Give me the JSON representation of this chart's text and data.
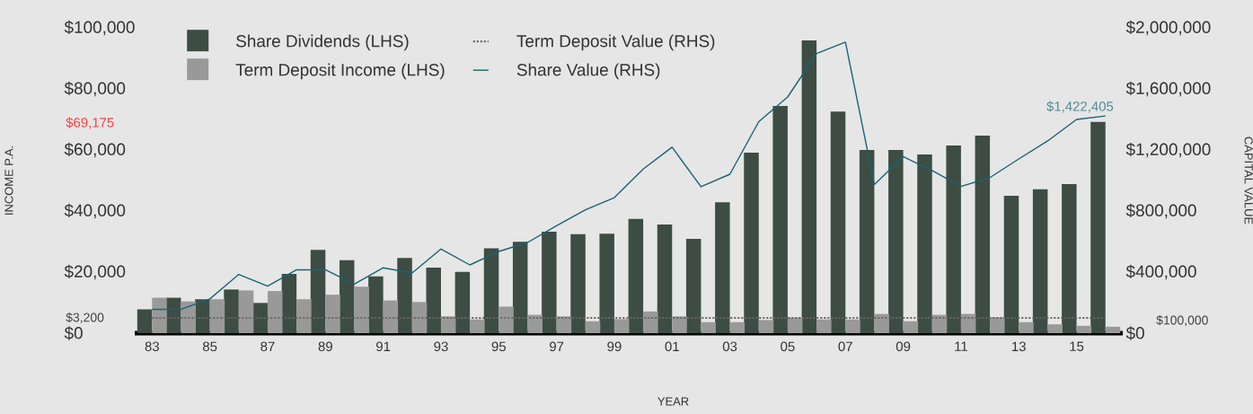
{
  "chart_data": {
    "type": "bar",
    "xlabel": "YEAR",
    "ylabel": "INCOME P.A.",
    "y2label": "CAPITAL VALUE",
    "categories": [
      "83",
      null,
      "85",
      null,
      "87",
      null,
      "89",
      null,
      "91",
      null,
      "93",
      null,
      "95",
      null,
      "97",
      null,
      "99",
      null,
      "01",
      null,
      "03",
      null,
      "05",
      null,
      "07",
      null,
      "09",
      null,
      "11",
      null,
      "13",
      null,
      "15",
      null
    ],
    "series": [
      {
        "name": "Share Dividends (LHS)",
        "color": "#3d4d43",
        "values": [
          7800,
          11600,
          11100,
          14300,
          9900,
          19400,
          27300,
          23900,
          18600,
          24600,
          21500,
          20100,
          27800,
          29900,
          33200,
          32400,
          32600,
          37400,
          35600,
          30900,
          42900,
          59100,
          74400,
          95900,
          72600,
          60000,
          60000,
          58500,
          61500,
          64700,
          45000,
          47100,
          48800,
          69175
        ]
      },
      {
        "name": "Term Deposit Income (LHS)",
        "color": "#999999",
        "values": [
          11600,
          10400,
          11100,
          14000,
          13800,
          11100,
          12600,
          15200,
          10700,
          10200,
          5500,
          4500,
          8700,
          6000,
          5500,
          3900,
          4600,
          7100,
          5500,
          3600,
          3600,
          4300,
          5100,
          4500,
          4500,
          6300,
          3900,
          6000,
          6300,
          5200,
          3600,
          2900,
          2400,
          2100
        ]
      },
      {
        "name": "Term Deposit Value (RHS)",
        "type": "line",
        "axis": "y2",
        "color": "#666666",
        "line_style": "dotted",
        "values": [
          100000,
          100000,
          100000,
          100000,
          100000,
          100000,
          100000,
          100000,
          100000,
          100000,
          100000,
          100000,
          100000,
          100000,
          100000,
          100000,
          100000,
          100000,
          100000,
          100000,
          100000,
          100000,
          100000,
          100000,
          100000,
          100000,
          100000,
          100000,
          100000,
          100000,
          100000,
          100000,
          100000,
          100000
        ]
      },
      {
        "name": "Share Value (RHS)",
        "type": "line",
        "axis": "y2",
        "color": "#1a6375",
        "values": [
          156000,
          156000,
          224000,
          385000,
          308000,
          415000,
          415000,
          321000,
          428000,
          394000,
          551000,
          447000,
          535000,
          594000,
          704000,
          808000,
          888000,
          1075000,
          1218000,
          959000,
          1041000,
          1385000,
          1547000,
          1832000,
          1906000,
          974000,
          1156000,
          1065000,
          961000,
          1019000,
          1141000,
          1259000,
          1400000,
          1422405
        ]
      }
    ],
    "ylim": [
      0,
      100000
    ],
    "yticks": [
      {
        "value": 0,
        "label": "$0"
      },
      {
        "value": 20000,
        "label": "$20,000"
      },
      {
        "value": 40000,
        "label": "$40,000"
      },
      {
        "value": 60000,
        "label": "$60,000"
      },
      {
        "value": 80000,
        "label": "$80,000"
      },
      {
        "value": 100000,
        "label": "$100,000"
      }
    ],
    "y2lim": [
      0,
      2000000
    ],
    "y2ticks": [
      {
        "value": 0,
        "label": "$0"
      },
      {
        "value": 400000,
        "label": "$400,000"
      },
      {
        "value": 800000,
        "label": "$800,000"
      },
      {
        "value": 1200000,
        "label": "$1,200,000"
      },
      {
        "value": 1600000,
        "label": "$1,600,000"
      },
      {
        "value": 2000000,
        "label": "$2,000,000"
      }
    ],
    "annotations": [
      "$69,175",
      "$3,200",
      "$1,422,405",
      "$100,000"
    ],
    "legend": "top left"
  }
}
